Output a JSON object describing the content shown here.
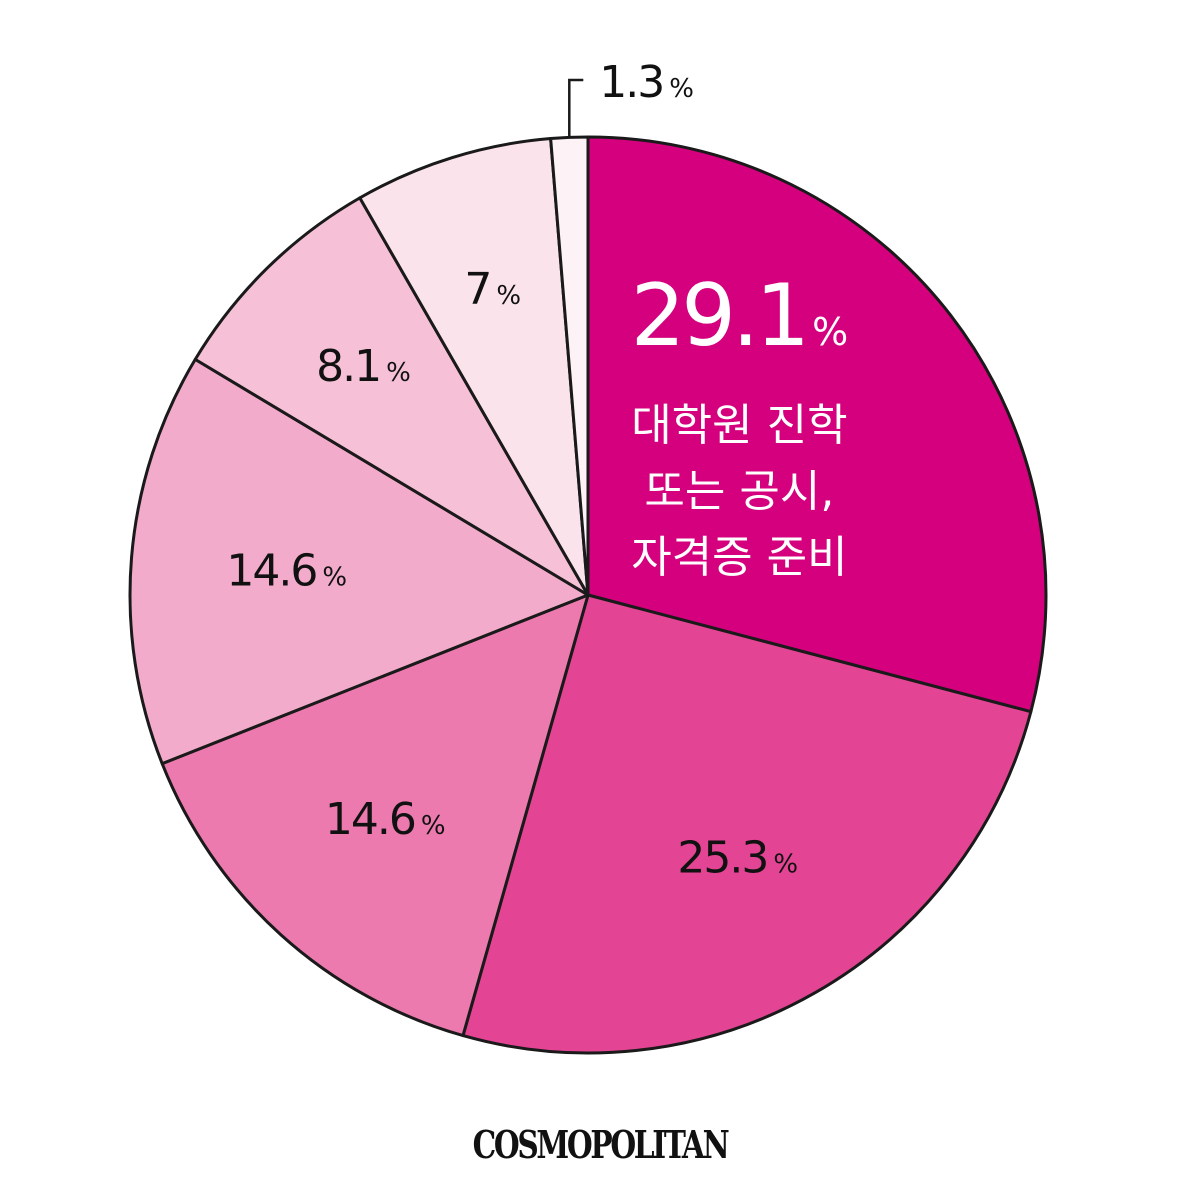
{
  "chart_data": {
    "type": "pie",
    "start_angle_deg": 0,
    "direction": "clockwise",
    "slices": [
      {
        "value": 29.1,
        "label": "29.1",
        "unit": "%",
        "color": "#D4007D",
        "caption": [
          "대학원 진학",
          "또는 공시,",
          "자격증 준비"
        ],
        "highlight": true
      },
      {
        "value": 25.3,
        "label": "25.3",
        "unit": "%",
        "color": "#E44494"
      },
      {
        "value": 14.6,
        "label": "14.6",
        "unit": "%",
        "color": "#EC7AAE"
      },
      {
        "value": 14.6,
        "label": "14.6",
        "unit": "%",
        "color": "#F3ABCB"
      },
      {
        "value": 8.1,
        "label": "8.1",
        "unit": "%",
        "color": "#F6C0D7"
      },
      {
        "value": 7,
        "label": "7",
        "unit": "%",
        "color": "#FBE3EC"
      },
      {
        "value": 1.3,
        "label": "1.3",
        "unit": "%",
        "color": "#FDF2F6",
        "callout": true
      }
    ],
    "stroke_color": "#1a1a1a"
  },
  "brand": {
    "logo": "COSMOPOLITAN"
  }
}
